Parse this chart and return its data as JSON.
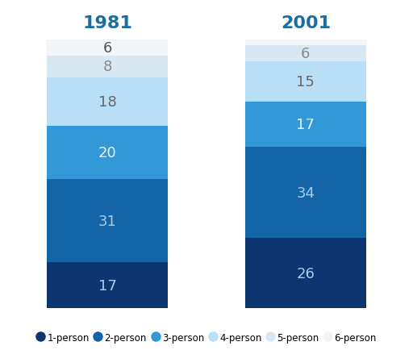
{
  "title_1981": "1981",
  "title_2001": "2001",
  "title_color": "#1a6fa0",
  "title_fontsize": 16,
  "categories": [
    "1-person",
    "2-person",
    "3-person",
    "4-person",
    "5-person",
    "6-person"
  ],
  "colors": [
    "#0d3570",
    "#1464a8",
    "#3399d6",
    "#b8dff5",
    "#d8e8f2",
    "#f2f5f8"
  ],
  "values_1981": [
    17,
    31,
    20,
    18,
    8,
    6
  ],
  "values_2001": [
    26,
    34,
    17,
    15,
    6,
    2
  ],
  "label_colors_1981": [
    "#aaccee",
    "#aaccee",
    "#e8f4fc",
    "#666666",
    "#888888",
    "#555555"
  ],
  "label_colors_2001": [
    "#aaccee",
    "#aaccee",
    "#e8f4fc",
    "#666666",
    "#888888",
    "#555555"
  ],
  "background_color": "#ffffff",
  "bar_width": 0.7,
  "legend_fontsize": 8.5,
  "label_fontsize": 13,
  "min_label_val": 3
}
